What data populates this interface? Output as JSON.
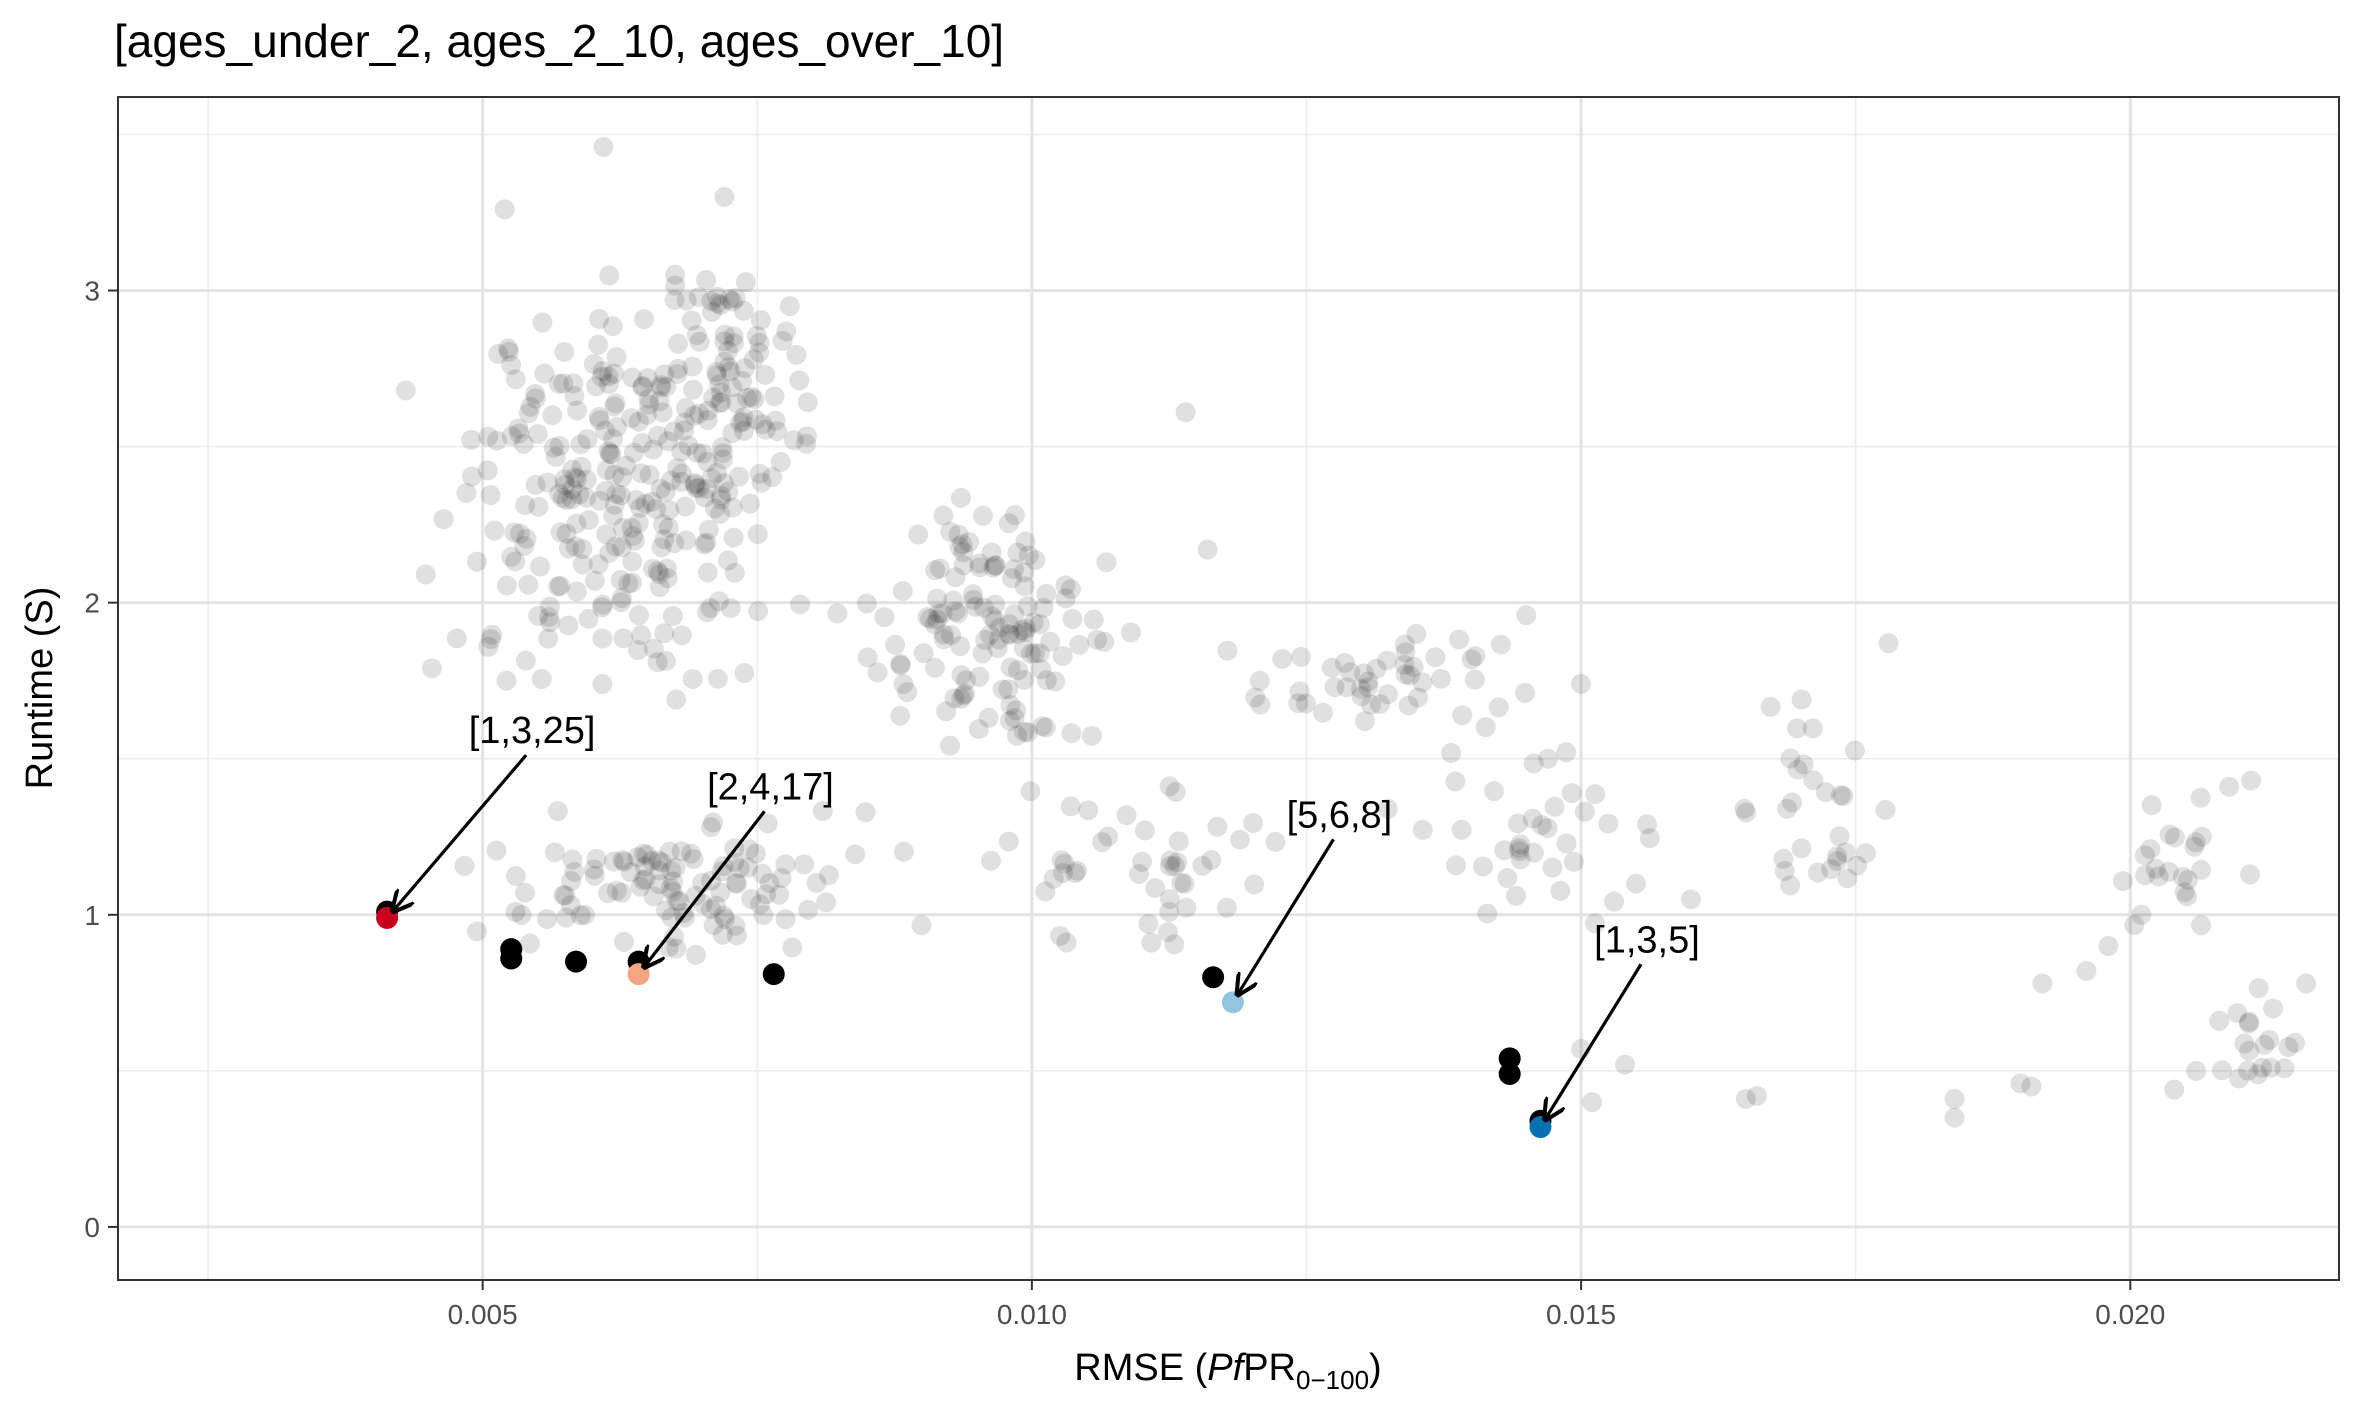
{
  "chart_data": {
    "type": "scatter",
    "title": "[ages_under_2, ages_2_10, ages_over_10]",
    "xlabel": {
      "prefix": "RMSE (",
      "italic": "Pf",
      "main": "PR",
      "subscript": "0−100",
      "suffix": ")"
    },
    "ylabel": "Runtime (S)",
    "xlim": [
      0.00168,
      0.0219
    ],
    "ylim": [
      -0.17,
      3.62
    ],
    "x_ticks": [
      {
        "value": 0.005,
        "label": "0.005"
      },
      {
        "value": 0.01,
        "label": "0.010"
      },
      {
        "value": 0.015,
        "label": "0.015"
      },
      {
        "value": 0.02,
        "label": "0.020"
      }
    ],
    "y_ticks": [
      {
        "value": 0,
        "label": "0"
      },
      {
        "value": 1,
        "label": "1"
      },
      {
        "value": 2,
        "label": "2"
      },
      {
        "value": 3,
        "label": "3"
      }
    ],
    "grid": true,
    "background_points": {
      "color": "#000000",
      "opacity": 0.12,
      "seed": 7,
      "clusters": [
        {
          "x": [
            0.0042,
            0.0082
          ],
          "y": [
            1.65,
            3.1
          ],
          "n": 260
        },
        {
          "x": [
            0.0062,
            0.0082
          ],
          "y": [
            2.2,
            3.1
          ],
          "n": 70
        },
        {
          "x": [
            0.008,
            0.0112
          ],
          "y": [
            1.5,
            2.35
          ],
          "n": 130
        },
        {
          "x": [
            0.0112,
            0.0148
          ],
          "y": [
            1.55,
            1.95
          ],
          "n": 45
        },
        {
          "x": [
            0.0045,
            0.0092
          ],
          "y": [
            0.85,
            1.35
          ],
          "n": 110
        },
        {
          "x": [
            0.0092,
            0.0128
          ],
          "y": [
            0.85,
            1.45
          ],
          "n": 45
        },
        {
          "x": [
            0.0128,
            0.016
          ],
          "y": [
            0.95,
            1.55
          ],
          "n": 35
        },
        {
          "x": [
            0.0162,
            0.018
          ],
          "y": [
            1.0,
            1.75
          ],
          "n": 30
        },
        {
          "x": [
            0.0195,
            0.0212
          ],
          "y": [
            0.9,
            1.45
          ],
          "n": 22
        },
        {
          "x": [
            0.0206,
            0.0216
          ],
          "y": [
            0.4,
            0.8
          ],
          "n": 16
        }
      ],
      "points": [
        {
          "x": 0.0061,
          "y": 3.46
        },
        {
          "x": 0.0052,
          "y": 3.26
        },
        {
          "x": 0.0072,
          "y": 3.3
        },
        {
          "x": 0.0043,
          "y": 2.68
        },
        {
          "x": 0.0114,
          "y": 2.61
        },
        {
          "x": 0.0116,
          "y": 2.17
        },
        {
          "x": 0.013,
          "y": 1.7
        },
        {
          "x": 0.0178,
          "y": 1.87
        },
        {
          "x": 0.0184,
          "y": 0.41
        },
        {
          "x": 0.0184,
          "y": 0.35
        },
        {
          "x": 0.019,
          "y": 0.46
        },
        {
          "x": 0.0191,
          "y": 0.45
        },
        {
          "x": 0.0192,
          "y": 0.78
        },
        {
          "x": 0.0196,
          "y": 0.82
        },
        {
          "x": 0.0198,
          "y": 0.9
        },
        {
          "x": 0.0151,
          "y": 0.4
        },
        {
          "x": 0.0154,
          "y": 0.52
        },
        {
          "x": 0.015,
          "y": 0.57
        },
        {
          "x": 0.0166,
          "y": 0.42
        },
        {
          "x": 0.0165,
          "y": 0.41
        },
        {
          "x": 0.0156,
          "y": 1.29
        },
        {
          "x": 0.015,
          "y": 1.74
        },
        {
          "x": 0.0155,
          "y": 1.1
        },
        {
          "x": 0.016,
          "y": 1.05
        },
        {
          "x": 0.0209,
          "y": 1.41
        },
        {
          "x": 0.0211,
          "y": 1.43
        },
        {
          "x": 0.0201,
          "y": 1.0
        },
        {
          "x": 0.0216,
          "y": 0.78
        },
        {
          "x": 0.0213,
          "y": 0.7
        },
        {
          "x": 0.0204,
          "y": 0.44
        },
        {
          "x": 0.0206,
          "y": 0.5
        },
        {
          "x": 0.0215,
          "y": 0.59
        },
        {
          "x": 0.0212,
          "y": 0.51
        },
        {
          "x": 0.0147,
          "y": 1.5
        },
        {
          "x": 0.0145,
          "y": 1.96
        },
        {
          "x": 0.0135,
          "y": 1.9
        }
      ]
    },
    "highlight_points": {
      "color": "#000000",
      "points": [
        {
          "x": 0.00413,
          "y": 1.01
        },
        {
          "x": 0.00526,
          "y": 0.89
        },
        {
          "x": 0.00526,
          "y": 0.86
        },
        {
          "x": 0.00585,
          "y": 0.85
        },
        {
          "x": 0.00642,
          "y": 0.85
        },
        {
          "x": 0.00765,
          "y": 0.81
        },
        {
          "x": 0.01165,
          "y": 0.8
        },
        {
          "x": 0.01435,
          "y": 0.54
        },
        {
          "x": 0.01435,
          "y": 0.49
        },
        {
          "x": 0.01463,
          "y": 0.34
        }
      ]
    },
    "annotations": [
      {
        "label": "[1,3,25]",
        "x": 0.00413,
        "y": 0.99,
        "color": "#ca0020",
        "label_x": 0.00545,
        "label_y": 1.55
      },
      {
        "label": "[2,4,17]",
        "x": 0.00642,
        "y": 0.81,
        "color": "#f4a582",
        "label_x": 0.00762,
        "label_y": 1.37
      },
      {
        "label": "[5,6,8]",
        "x": 0.01183,
        "y": 0.72,
        "color": "#92c5de",
        "label_x": 0.0128,
        "label_y": 1.28
      },
      {
        "label": "[1,3,5]",
        "x": 0.01463,
        "y": 0.32,
        "color": "#0571b0",
        "label_x": 0.0156,
        "label_y": 0.88
      }
    ]
  }
}
